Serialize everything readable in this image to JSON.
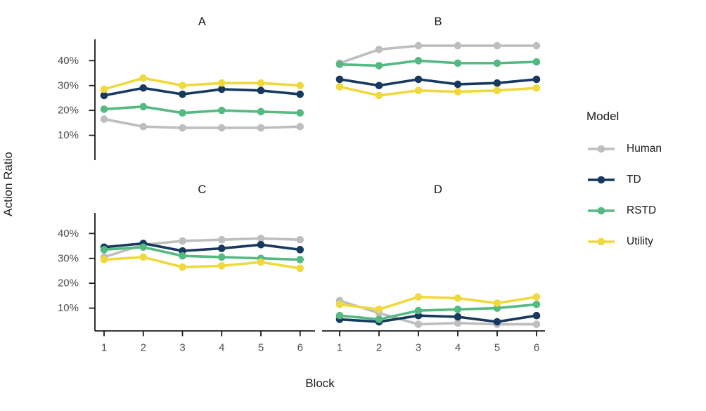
{
  "figure": {
    "y_axis_title": "Action Ratio",
    "x_axis_title": "Block",
    "background_color": "#ffffff",
    "axis_line_color": "#1a1a1a",
    "tick_label_color": "#4d4d4d",
    "title_color": "#1a1a1a"
  },
  "legend": {
    "title": "Model",
    "entries": [
      {
        "label": "Human",
        "color": "#BEBEBE"
      },
      {
        "label": "TD",
        "color": "#17395E"
      },
      {
        "label": "RSTD",
        "color": "#55B982"
      },
      {
        "label": "Utility",
        "color": "#EFD93D"
      }
    ]
  },
  "chart_data": {
    "type": "line",
    "title": "",
    "xlabel": "Block",
    "ylabel": "Action Ratio",
    "x": [
      1,
      2,
      3,
      4,
      5,
      6
    ],
    "x_tick_labels": [
      "1",
      "2",
      "3",
      "4",
      "5",
      "6"
    ],
    "y_ticks": [
      10,
      20,
      30,
      40
    ],
    "y_tick_labels": [
      "10%",
      "20%",
      "30%",
      "40%"
    ],
    "ylim": [
      0,
      48
    ],
    "grid": false,
    "legend_position": "right",
    "marker": "circle",
    "facets": [
      {
        "label": "A",
        "series": [
          {
            "name": "Human",
            "values": [
              16.5,
              13.5,
              13.0,
              13.0,
              13.0,
              13.5
            ]
          },
          {
            "name": "TD",
            "values": [
              26.0,
              29.0,
              26.5,
              28.5,
              28.0,
              26.5
            ]
          },
          {
            "name": "RSTD",
            "values": [
              20.5,
              21.5,
              19.0,
              20.0,
              19.5,
              19.0
            ]
          },
          {
            "name": "Utility",
            "values": [
              28.5,
              33.0,
              30.0,
              31.0,
              31.0,
              30.0
            ]
          }
        ]
      },
      {
        "label": "B",
        "series": [
          {
            "name": "Human",
            "values": [
              39.0,
              44.5,
              46.0,
              46.0,
              46.0,
              46.0
            ]
          },
          {
            "name": "TD",
            "values": [
              32.5,
              30.0,
              32.5,
              30.5,
              31.0,
              32.5
            ]
          },
          {
            "name": "RSTD",
            "values": [
              38.5,
              38.0,
              40.0,
              39.0,
              39.0,
              39.5
            ]
          },
          {
            "name": "Utility",
            "values": [
              29.5,
              26.0,
              28.0,
              27.5,
              28.0,
              29.0
            ]
          }
        ]
      },
      {
        "label": "C",
        "series": [
          {
            "name": "Human",
            "values": [
              30.5,
              35.5,
              37.0,
              37.5,
              38.0,
              37.5
            ]
          },
          {
            "name": "TD",
            "values": [
              34.5,
              36.0,
              33.0,
              34.0,
              35.5,
              33.5
            ]
          },
          {
            "name": "RSTD",
            "values": [
              33.5,
              34.5,
              31.0,
              30.5,
              30.0,
              29.5
            ]
          },
          {
            "name": "Utility",
            "values": [
              29.5,
              30.5,
              26.5,
              27.0,
              28.5,
              26.0
            ]
          }
        ]
      },
      {
        "label": "D",
        "series": [
          {
            "name": "Human",
            "values": [
              13.0,
              8.0,
              3.5,
              4.0,
              3.5,
              3.5
            ]
          },
          {
            "name": "TD",
            "values": [
              5.5,
              4.5,
              7.0,
              6.5,
              4.5,
              7.0
            ]
          },
          {
            "name": "RSTD",
            "values": [
              7.0,
              5.5,
              9.0,
              9.5,
              10.0,
              11.5
            ]
          },
          {
            "name": "Utility",
            "values": [
              11.5,
              9.5,
              14.5,
              14.0,
              12.0,
              14.5
            ]
          }
        ]
      }
    ]
  }
}
